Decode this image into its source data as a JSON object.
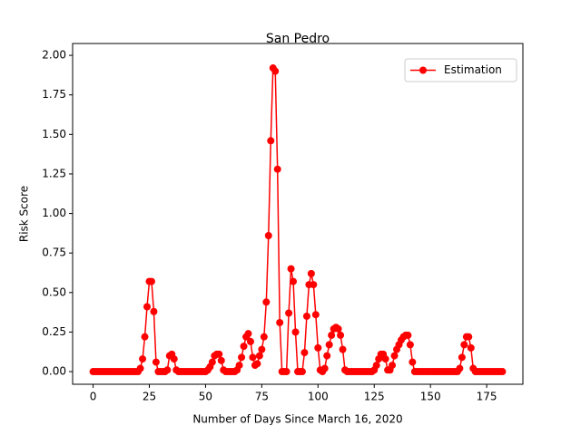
{
  "chart_data": {
    "type": "line",
    "title": "San Pedro",
    "x_label": "Number of Days Since March 16, 2020",
    "y_label": "Risk Score",
    "x": [
      0,
      1,
      2,
      3,
      4,
      5,
      6,
      7,
      8,
      9,
      10,
      11,
      12,
      13,
      14,
      15,
      16,
      17,
      18,
      19,
      20,
      21,
      22,
      23,
      24,
      25,
      26,
      27,
      28,
      29,
      30,
      31,
      32,
      33,
      34,
      35,
      36,
      37,
      38,
      39,
      40,
      41,
      42,
      43,
      44,
      45,
      46,
      47,
      48,
      49,
      50,
      51,
      52,
      53,
      54,
      55,
      56,
      57,
      58,
      59,
      60,
      61,
      62,
      63,
      64,
      65,
      66,
      67,
      68,
      69,
      70,
      71,
      72,
      73,
      74,
      75,
      76,
      77,
      78,
      79,
      80,
      81,
      82,
      83,
      84,
      85,
      86,
      87,
      88,
      89,
      90,
      91,
      92,
      93,
      94,
      95,
      96,
      97,
      98,
      99,
      100,
      101,
      102,
      103,
      104,
      105,
      106,
      107,
      108,
      109,
      110,
      111,
      112,
      113,
      114,
      115,
      116,
      117,
      118,
      119,
      120,
      121,
      122,
      123,
      124,
      125,
      126,
      127,
      128,
      129,
      130,
      131,
      132,
      133,
      134,
      135,
      136,
      137,
      138,
      139,
      140,
      141,
      142,
      143,
      144,
      145,
      146,
      147,
      148,
      149,
      150,
      151,
      152,
      153,
      154,
      155,
      156,
      157,
      158,
      159,
      160,
      161,
      162,
      163,
      164,
      165,
      166,
      167,
      168,
      169,
      170,
      171,
      172,
      173,
      174,
      175,
      176,
      177,
      178,
      179,
      180,
      181,
      182
    ],
    "series": [
      {
        "name": "Estimation",
        "color": "#ff0000",
        "values": [
          0,
          0,
          0,
          0,
          0,
          0,
          0,
          0,
          0,
          0,
          0,
          0,
          0,
          0,
          0,
          0,
          0,
          0,
          0,
          0,
          0,
          0.02,
          0.08,
          0.22,
          0.41,
          0.57,
          0.57,
          0.38,
          0.06,
          0,
          0,
          0,
          0,
          0.01,
          0.1,
          0.11,
          0.08,
          0.01,
          0,
          0,
          0,
          0,
          0,
          0,
          0,
          0,
          0,
          0,
          0,
          0,
          0,
          0.01,
          0.03,
          0.06,
          0.1,
          0.11,
          0.11,
          0.07,
          0.01,
          0,
          0,
          0,
          0,
          0,
          0.01,
          0.04,
          0.09,
          0.16,
          0.22,
          0.24,
          0.19,
          0.09,
          0.04,
          0.05,
          0.1,
          0.14,
          0.22,
          0.44,
          0.86,
          1.46,
          1.92,
          1.9,
          1.28,
          0.31,
          0,
          0,
          0,
          0.37,
          0.65,
          0.57,
          0.25,
          0,
          0,
          0,
          0.12,
          0.35,
          0.55,
          0.62,
          0.55,
          0.36,
          0.15,
          0.01,
          0,
          0.02,
          0.1,
          0.17,
          0.23,
          0.27,
          0.28,
          0.27,
          0.23,
          0.14,
          0.01,
          0,
          0,
          0,
          0,
          0,
          0,
          0,
          0,
          0,
          0,
          0,
          0,
          0.01,
          0.04,
          0.08,
          0.11,
          0.11,
          0.08,
          0.01,
          0.01,
          0.04,
          0.1,
          0.14,
          0.17,
          0.2,
          0.22,
          0.23,
          0.23,
          0.17,
          0.06,
          0,
          0,
          0,
          0,
          0,
          0,
          0,
          0,
          0,
          0,
          0,
          0,
          0,
          0,
          0,
          0,
          0,
          0,
          0,
          0,
          0.02,
          0.09,
          0.17,
          0.22,
          0.22,
          0.15,
          0.02,
          0,
          0,
          0,
          0,
          0,
          0,
          0,
          0,
          0,
          0,
          0,
          0,
          0
        ]
      }
    ],
    "xlim": [
      -9.1,
      191.1
    ],
    "ylim": [
      -0.08,
      2.075
    ],
    "xticks": [
      0,
      25,
      50,
      75,
      100,
      125,
      150,
      175
    ],
    "yticks": [
      {
        "value": 0,
        "label": "0.00"
      },
      {
        "value": 0.25,
        "label": "0.25"
      },
      {
        "value": 0.5,
        "label": "0.50"
      },
      {
        "value": 0.75,
        "label": "0.75"
      },
      {
        "value": 1,
        "label": "1.00"
      },
      {
        "value": 1.25,
        "label": "1.25"
      },
      {
        "value": 1.5,
        "label": "1.50"
      },
      {
        "value": 1.75,
        "label": "1.75"
      },
      {
        "value": 2,
        "label": "2.00"
      }
    ],
    "legend_position": "upper right"
  }
}
